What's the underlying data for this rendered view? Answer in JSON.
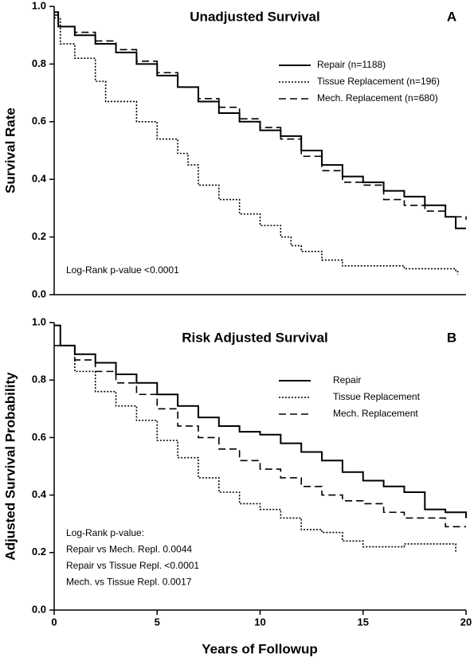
{
  "chart_data": [
    {
      "type": "line",
      "title": "Unadjusted Survival",
      "panel_label": "A",
      "ylabel": "Survival  Rate",
      "xlim": [
        0,
        20
      ],
      "ylim": [
        0,
        1
      ],
      "yticks": [
        {
          "value": 0,
          "label": "0.0"
        },
        {
          "value": 0.2,
          "label": "0.2"
        },
        {
          "value": 0.4,
          "label": "0.4"
        },
        {
          "value": 0.6,
          "label": "0.6"
        },
        {
          "value": 0.8,
          "label": "0.8"
        },
        {
          "value": 1,
          "label": "1.0"
        }
      ],
      "annotations": [
        "Log-Rank p-value <0.0001"
      ],
      "series": [
        {
          "name": "Repair (n=1188)",
          "color": "#000000",
          "style": "solid",
          "x": [
            0,
            0.2,
            1,
            2,
            3,
            4,
            5,
            6,
            7,
            8,
            9,
            10,
            11,
            12,
            13,
            14,
            15,
            16,
            17,
            18,
            19,
            19.5,
            20
          ],
          "values": [
            0.98,
            0.93,
            0.9,
            0.87,
            0.84,
            0.8,
            0.76,
            0.72,
            0.67,
            0.63,
            0.6,
            0.57,
            0.55,
            0.5,
            0.45,
            0.41,
            0.39,
            0.36,
            0.34,
            0.31,
            0.27,
            0.23,
            0.23
          ]
        },
        {
          "name": "Tissue Replacement (n=196)",
          "color": "#000000",
          "style": "dotted",
          "x": [
            0,
            0.3,
            1,
            2,
            2.5,
            4,
            5,
            6,
            6.5,
            7,
            8,
            9,
            10,
            11,
            11.5,
            12,
            13,
            14,
            16,
            17,
            19.5,
            19.6
          ],
          "values": [
            0.96,
            0.87,
            0.82,
            0.74,
            0.67,
            0.6,
            0.54,
            0.49,
            0.45,
            0.38,
            0.33,
            0.28,
            0.24,
            0.2,
            0.17,
            0.15,
            0.12,
            0.1,
            0.1,
            0.09,
            0.08,
            0.07
          ]
        },
        {
          "name": "Mech. Replacement (n=680)",
          "color": "#000000",
          "style": "dashed",
          "x": [
            0,
            0.2,
            1,
            2,
            3,
            4,
            5,
            6,
            7,
            8,
            9,
            10,
            11,
            12,
            13,
            14,
            15,
            16,
            17,
            18,
            19,
            20
          ],
          "values": [
            0.97,
            0.93,
            0.91,
            0.88,
            0.85,
            0.81,
            0.77,
            0.72,
            0.68,
            0.65,
            0.61,
            0.58,
            0.54,
            0.48,
            0.43,
            0.39,
            0.38,
            0.33,
            0.31,
            0.29,
            0.27,
            0.26
          ]
        }
      ]
    },
    {
      "type": "line",
      "title": "Risk Adjusted Survival",
      "panel_label": "B",
      "ylabel": "Adjusted Survival  Probability",
      "xlabel": "Years of Followup",
      "xlim": [
        0,
        20
      ],
      "xticks": [
        0,
        5,
        10,
        15,
        20
      ],
      "ylim": [
        0,
        1
      ],
      "yticks": [
        {
          "value": 0,
          "label": "0.0"
        },
        {
          "value": 0.2,
          "label": "0.2"
        },
        {
          "value": 0.4,
          "label": "0.4"
        },
        {
          "value": 0.6,
          "label": "0.6"
        },
        {
          "value": 0.8,
          "label": "0.8"
        },
        {
          "value": 1,
          "label": "1.0"
        }
      ],
      "annotations": [
        "Log-Rank p-value:",
        "Repair vs Mech. Repl. 0.0044",
        "Repair vs Tissue Repl. <0.0001",
        "Mech. vs Tissue Repl.  0.0017"
      ],
      "series": [
        {
          "name": "Repair",
          "color": "#000000",
          "style": "solid",
          "x": [
            0,
            0.3,
            1,
            2,
            3,
            4,
            5,
            6,
            7,
            8,
            9,
            10,
            11,
            12,
            13,
            14,
            15,
            16,
            17,
            18,
            19,
            20
          ],
          "values": [
            0.99,
            0.92,
            0.89,
            0.86,
            0.82,
            0.79,
            0.75,
            0.71,
            0.67,
            0.64,
            0.62,
            0.61,
            0.58,
            0.55,
            0.52,
            0.48,
            0.45,
            0.43,
            0.41,
            0.35,
            0.34,
            0.32
          ]
        },
        {
          "name": "Tissue Replacement",
          "color": "#000000",
          "style": "dotted",
          "x": [
            0,
            1,
            2,
            3,
            4,
            5,
            6,
            7,
            8,
            9,
            10,
            11,
            12,
            13,
            14,
            15,
            16,
            17,
            19.5
          ],
          "values": [
            0.92,
            0.83,
            0.76,
            0.71,
            0.66,
            0.59,
            0.53,
            0.46,
            0.41,
            0.37,
            0.35,
            0.32,
            0.28,
            0.27,
            0.24,
            0.22,
            0.22,
            0.23,
            0.2
          ]
        },
        {
          "name": "Mech. Replacement",
          "color": "#000000",
          "style": "dashed",
          "x": [
            0,
            1,
            2,
            3,
            4,
            5,
            6,
            7,
            8,
            9,
            10,
            11,
            12,
            13,
            14,
            15,
            16,
            17,
            18,
            19,
            20
          ],
          "values": [
            0.92,
            0.87,
            0.83,
            0.79,
            0.75,
            0.7,
            0.64,
            0.6,
            0.56,
            0.52,
            0.49,
            0.46,
            0.43,
            0.4,
            0.38,
            0.37,
            0.34,
            0.32,
            0.32,
            0.29,
            0.29
          ]
        }
      ]
    }
  ]
}
